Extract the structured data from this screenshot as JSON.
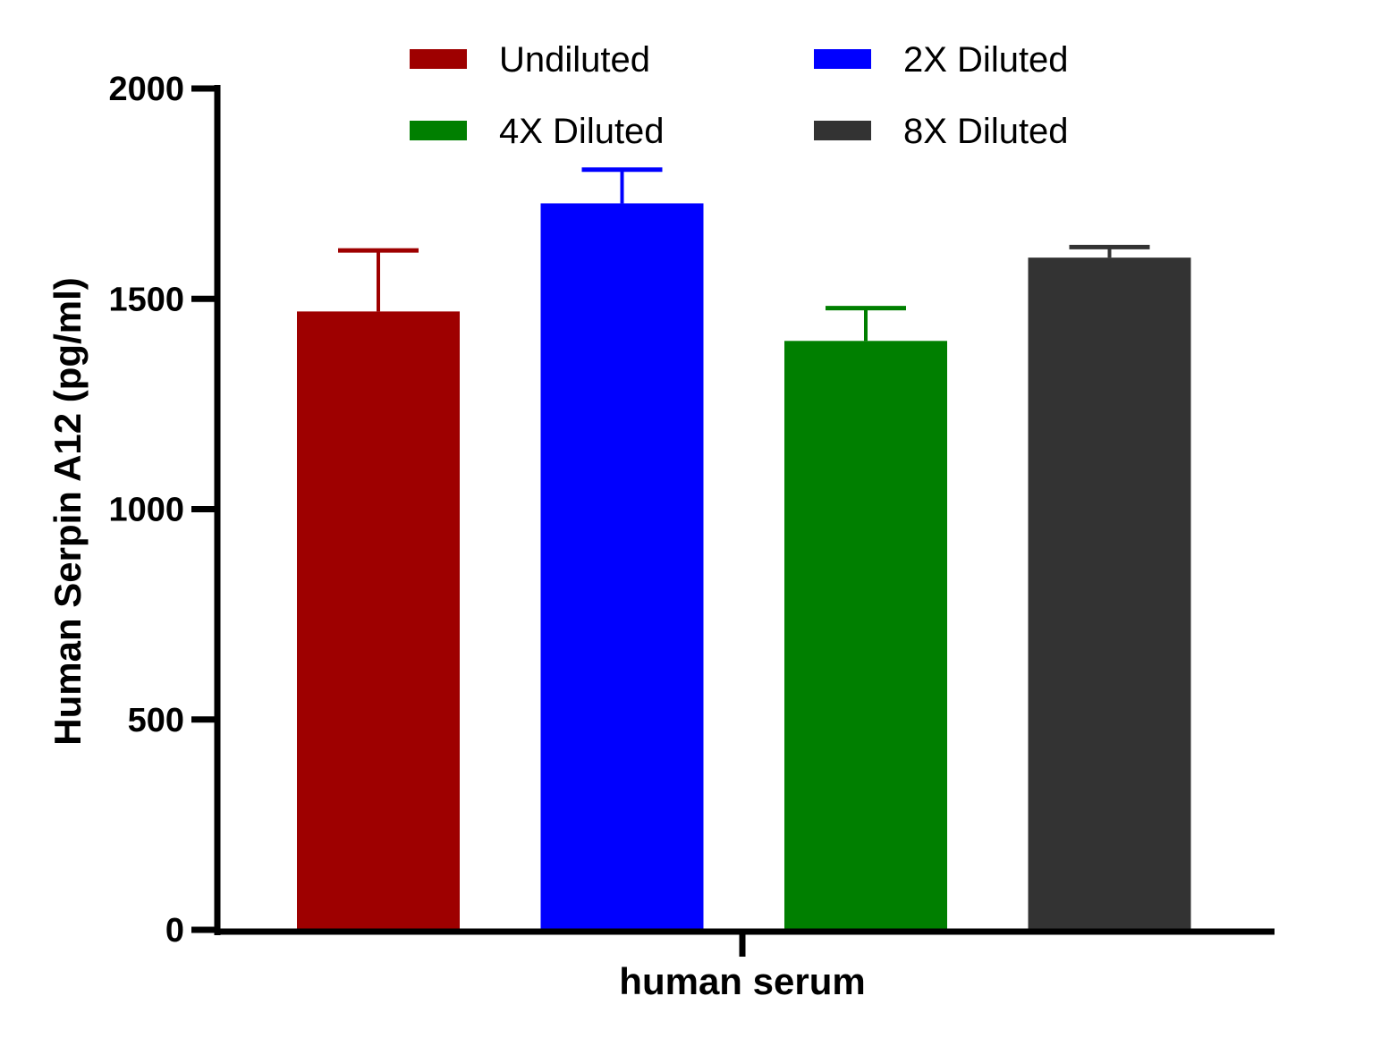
{
  "chart_data": {
    "type": "bar",
    "categories": [
      "human serum"
    ],
    "xlabel": "human serum",
    "ylabel": "Human Serpin A12 (pg/ml)",
    "ylim": [
      0,
      2000
    ],
    "yticks": [
      "0",
      "500",
      "1000",
      "1500",
      "2000"
    ],
    "grid": false,
    "legend_position": "top",
    "series": [
      {
        "name": "Undiluted",
        "values": [
          1470
        ],
        "error": [
          145
        ],
        "color": "#9e0000"
      },
      {
        "name": "2X Diluted",
        "values": [
          1727
        ],
        "error": [
          80
        ],
        "color": "#0000ff"
      },
      {
        "name": "4X Diluted",
        "values": [
          1400
        ],
        "error": [
          78
        ],
        "color": "#007f00"
      },
      {
        "name": "8X Diluted",
        "values": [
          1598
        ],
        "error": [
          25
        ],
        "color": "#333333"
      }
    ]
  }
}
